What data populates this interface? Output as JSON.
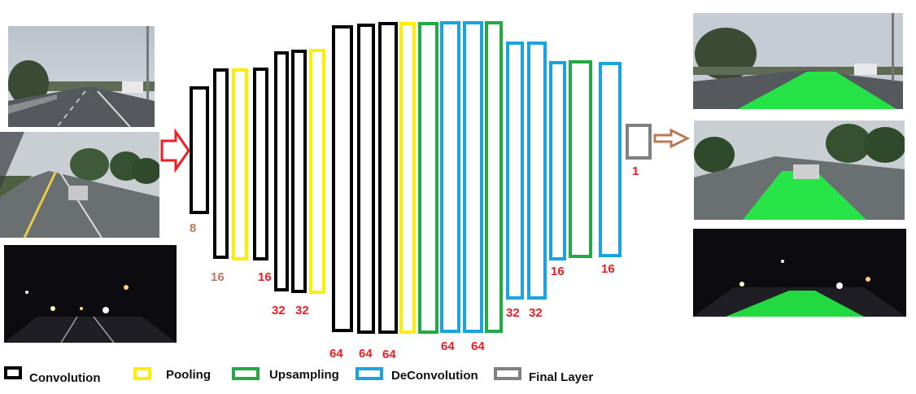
{
  "colors": {
    "convolution": "#000000",
    "pooling": "#ffee00",
    "upsampling": "#22aa44",
    "deconvolution": "#1aa3e0",
    "final": "#808080",
    "input_arrow": "#ee1c24",
    "output_arrow": "#b97a57",
    "label_red": "#ee1c24",
    "label_brown": "#b97a57",
    "lane_green": "#22ee44"
  },
  "layers": [
    {
      "type": "convolution",
      "label": "8",
      "label_color": "brown"
    },
    {
      "type": "convolution",
      "label": "",
      "label_color": "brown"
    },
    {
      "type": "pooling",
      "label": "16",
      "label_color": "brown"
    },
    {
      "type": "convolution",
      "label": "16",
      "label_color": "red"
    },
    {
      "type": "convolution",
      "label": "",
      "label_color": "red"
    },
    {
      "type": "convolution",
      "label": "32",
      "label_color": "red"
    },
    {
      "type": "pooling",
      "label": "32",
      "label_color": "red"
    },
    {
      "type": "convolution",
      "label": "64",
      "label_color": "red"
    },
    {
      "type": "convolution",
      "label": "64",
      "label_color": "red"
    },
    {
      "type": "convolution",
      "label": "64",
      "label_color": "red"
    },
    {
      "type": "pooling",
      "label": "",
      "label_color": "red"
    },
    {
      "type": "upsampling",
      "label": "",
      "label_color": "red"
    },
    {
      "type": "deconvolution",
      "label": "64",
      "label_color": "red"
    },
    {
      "type": "deconvolution",
      "label": "64",
      "label_color": "red"
    },
    {
      "type": "upsampling",
      "label": "",
      "label_color": "red"
    },
    {
      "type": "deconvolution",
      "label": "32",
      "label_color": "red"
    },
    {
      "type": "deconvolution",
      "label": "32",
      "label_color": "red"
    },
    {
      "type": "deconvolution",
      "label": "16",
      "label_color": "red"
    },
    {
      "type": "upsampling",
      "label": "",
      "label_color": "red"
    },
    {
      "type": "deconvolution",
      "label": "16",
      "label_color": "red"
    },
    {
      "type": "final",
      "label": "1",
      "label_color": "red"
    }
  ],
  "legend": [
    {
      "type": "convolution",
      "text": "Convolution"
    },
    {
      "type": "pooling",
      "text": "Pooling"
    },
    {
      "type": "upsampling",
      "text": "Upsampling"
    },
    {
      "type": "deconvolution",
      "text": "DeConvolution"
    },
    {
      "type": "final",
      "text": "Final Layer"
    }
  ],
  "images": {
    "inputs": [
      {
        "scene": "day-highway",
        "overlay": false
      },
      {
        "scene": "rainy-road",
        "overlay": false
      },
      {
        "scene": "night-highway",
        "overlay": false
      }
    ],
    "outputs": [
      {
        "scene": "day-highway",
        "overlay": true
      },
      {
        "scene": "rainy-road",
        "overlay": true
      },
      {
        "scene": "night-highway",
        "overlay": true
      }
    ]
  }
}
